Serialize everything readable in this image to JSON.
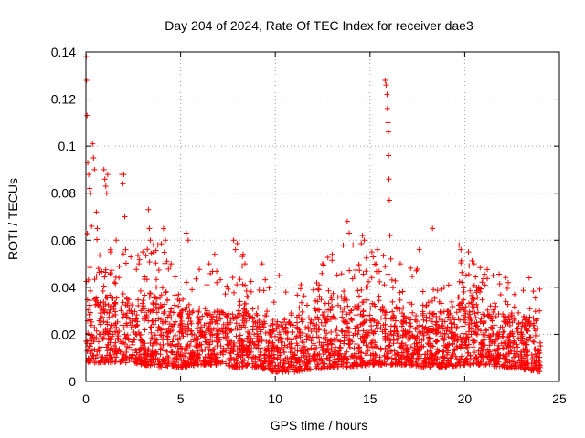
{
  "chart_data": {
    "type": "scatter",
    "title": "Day 204 of 2024, Rate Of TEC Index for receiver dae3",
    "xlabel": "GPS time / hours",
    "ylabel": "ROTI / TECUs",
    "xlim": [
      0,
      25
    ],
    "ylim": [
      0,
      0.14
    ],
    "xticks": [
      0,
      5,
      10,
      15,
      20,
      25
    ],
    "xtick_labels": [
      "0",
      "5",
      "10",
      "15",
      "20",
      "25"
    ],
    "yticks": [
      0,
      0.02,
      0.04,
      0.06,
      0.08,
      0.1,
      0.12,
      0.14
    ],
    "ytick_labels": [
      "0",
      "0.02",
      "0.04",
      "0.06",
      "0.08",
      "0.1",
      "0.12",
      "0.14"
    ],
    "grid": true,
    "marker": "+",
    "color": "#ff0000",
    "series": [
      {
        "name": "ROTI",
        "points": [
          [
            0.02,
            0.138
          ],
          [
            0.03,
            0.128
          ],
          [
            0.06,
            0.113
          ],
          [
            0.1,
            0.093
          ],
          [
            0.15,
            0.088
          ],
          [
            0.2,
            0.082
          ],
          [
            0.25,
            0.08
          ],
          [
            0.3,
            0.066
          ],
          [
            0.35,
            0.101
          ],
          [
            0.4,
            0.095
          ],
          [
            0.45,
            0.09
          ],
          [
            0.55,
            0.072
          ],
          [
            0.6,
            0.065
          ],
          [
            0.8,
            0.058
          ],
          [
            0.95,
            0.09
          ],
          [
            1.0,
            0.086
          ],
          [
            1.05,
            0.083
          ],
          [
            1.1,
            0.08
          ],
          [
            1.15,
            0.088
          ],
          [
            1.3,
            0.055
          ],
          [
            1.6,
            0.06
          ],
          [
            1.9,
            0.088
          ],
          [
            1.95,
            0.084
          ],
          [
            2.0,
            0.088
          ],
          [
            2.05,
            0.07
          ],
          [
            2.1,
            0.056
          ],
          [
            2.8,
            0.05
          ],
          [
            3.0,
            0.055
          ],
          [
            3.3,
            0.073
          ],
          [
            3.35,
            0.065
          ],
          [
            3.4,
            0.06
          ],
          [
            3.8,
            0.058
          ],
          [
            4.1,
            0.065
          ],
          [
            4.2,
            0.06
          ],
          [
            4.5,
            0.05
          ],
          [
            5.3,
            0.063
          ],
          [
            5.4,
            0.06
          ],
          [
            6.5,
            0.05
          ],
          [
            6.8,
            0.054
          ],
          [
            7.8,
            0.06
          ],
          [
            7.9,
            0.056
          ],
          [
            8.3,
            0.054
          ],
          [
            8.4,
            0.05
          ],
          [
            9.3,
            0.05
          ],
          [
            10.2,
            0.045
          ],
          [
            12.5,
            0.05
          ],
          [
            13.0,
            0.054
          ],
          [
            13.8,
            0.068
          ],
          [
            13.9,
            0.063
          ],
          [
            14.1,
            0.058
          ],
          [
            14.6,
            0.062
          ],
          [
            14.7,
            0.06
          ],
          [
            15.1,
            0.055
          ],
          [
            15.4,
            0.056
          ],
          [
            15.8,
            0.128
          ],
          [
            15.85,
            0.126
          ],
          [
            15.9,
            0.122
          ],
          [
            15.92,
            0.116
          ],
          [
            15.95,
            0.11
          ],
          [
            15.97,
            0.106
          ],
          [
            15.98,
            0.096
          ],
          [
            16.0,
            0.086
          ],
          [
            16.02,
            0.077
          ],
          [
            16.05,
            0.062
          ],
          [
            16.1,
            0.052
          ],
          [
            16.6,
            0.05
          ],
          [
            17.6,
            0.056
          ],
          [
            18.3,
            0.065
          ],
          [
            19.7,
            0.058
          ],
          [
            19.8,
            0.056
          ],
          [
            20.2,
            0.055
          ],
          [
            20.5,
            0.05
          ],
          [
            21.5,
            0.045
          ],
          [
            22.3,
            0.042
          ],
          [
            23.4,
            0.044
          ]
        ],
        "envelope": {
          "hour": [
            0,
            1,
            2,
            3,
            4,
            5,
            6,
            7,
            8,
            9,
            10,
            11,
            12,
            13,
            14,
            15,
            16,
            17,
            18,
            19,
            20,
            21,
            22,
            23,
            24
          ],
          "floor": [
            0.008,
            0.008,
            0.008,
            0.007,
            0.006,
            0.006,
            0.007,
            0.007,
            0.006,
            0.006,
            0.004,
            0.004,
            0.005,
            0.006,
            0.006,
            0.007,
            0.007,
            0.007,
            0.006,
            0.006,
            0.007,
            0.007,
            0.006,
            0.005,
            0.004
          ],
          "typical_high": [
            0.035,
            0.04,
            0.033,
            0.036,
            0.04,
            0.032,
            0.03,
            0.03,
            0.031,
            0.029,
            0.026,
            0.026,
            0.03,
            0.036,
            0.038,
            0.034,
            0.032,
            0.03,
            0.028,
            0.03,
            0.037,
            0.033,
            0.028,
            0.027,
            0.03
          ],
          "spike_high": [
            0.065,
            0.06,
            0.056,
            0.055,
            0.065,
            0.06,
            0.053,
            0.055,
            0.06,
            0.05,
            0.045,
            0.04,
            0.045,
            0.055,
            0.068,
            0.06,
            0.052,
            0.05,
            0.048,
            0.05,
            0.058,
            0.05,
            0.045,
            0.044,
            0.04
          ],
          "count": 3000
        }
      }
    ]
  }
}
